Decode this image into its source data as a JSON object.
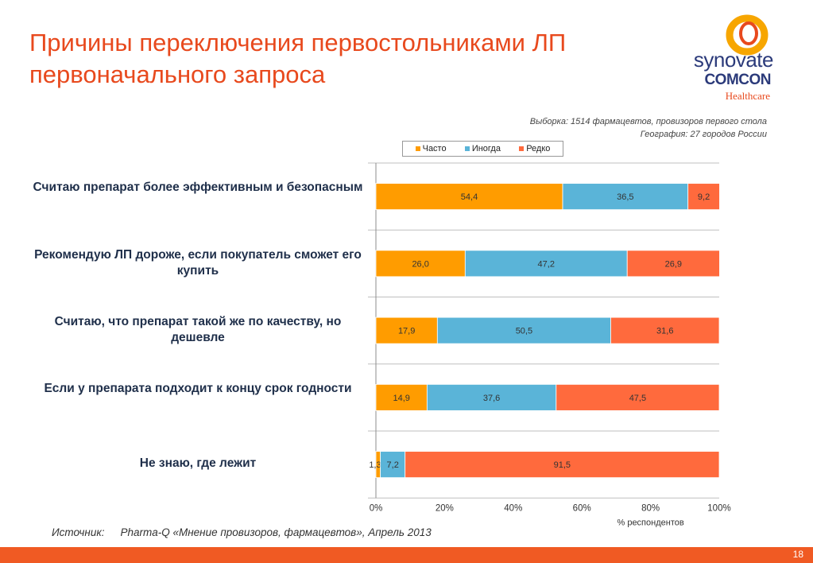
{
  "title": {
    "line1": "Причины переключения первостольниками ЛП",
    "line2": "первоначального запроса"
  },
  "logo": {
    "brand": "synovate",
    "company": "COMCON",
    "division": "Healthcare",
    "ring_colors": [
      "#f7a600",
      "#e8491d"
    ]
  },
  "notes": {
    "sample": "Выборка: 1514 фармацевтов, провизоров первого стола",
    "geography": "География: 27 городов России"
  },
  "source": {
    "label": "Источник:",
    "text": "Pharma-Q «Мнение провизоров, фармацевтов», Апрель 2013"
  },
  "page_number": "18",
  "chart_data": {
    "type": "bar",
    "orientation": "horizontal",
    "stacked": true,
    "categories": [
      "Считаю препарат более эффективным и безопасным",
      "Рекомендую ЛП дороже, если покупатель сможет его купить",
      "Считаю, что препарат такой же по качеству, но дешевле",
      "Если у препарата подходит к концу срок годности",
      "Не знаю, где лежит"
    ],
    "series": [
      {
        "name": "Часто",
        "color": "#ff9c00",
        "values": [
          54.4,
          26.0,
          17.9,
          14.9,
          1.3
        ]
      },
      {
        "name": "Иногда",
        "color": "#5ab4d8",
        "values": [
          36.5,
          47.2,
          50.5,
          37.6,
          7.2
        ]
      },
      {
        "name": "Редко",
        "color": "#ff6a3d",
        "values": [
          9.2,
          26.9,
          31.6,
          47.5,
          91.5
        ]
      }
    ],
    "value_labels": [
      [
        "54,4",
        "36,5",
        "9,2"
      ],
      [
        "26,0",
        "47,2",
        "26,9"
      ],
      [
        "17,9",
        "50,5",
        "31,6"
      ],
      [
        "14,9",
        "37,6",
        "47,5"
      ],
      [
        "1,3",
        "7,2",
        "91,5"
      ]
    ],
    "x_ticks": [
      "0%",
      "20%",
      "40%",
      "60%",
      "80%",
      "100%"
    ],
    "x_tick_values": [
      0,
      20,
      40,
      60,
      80,
      100
    ],
    "xlabel": "% респондентов",
    "xlim": [
      0,
      100
    ],
    "legend_position": "top",
    "grid": "horizontal separators"
  }
}
